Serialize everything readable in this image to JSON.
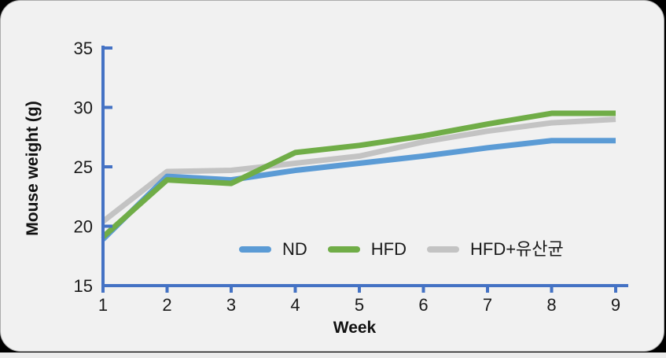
{
  "chart_data": {
    "type": "line",
    "title": "",
    "ylabel": "Mouse weight (g)",
    "xlabel": "Week",
    "x_tick_labels": [
      "1",
      "2",
      "3",
      "4",
      "5",
      "6",
      "7",
      "8",
      "9"
    ],
    "y_tick_labels": [
      "15",
      "20",
      "25",
      "30",
      "35"
    ],
    "y_tick_values": [
      15,
      20,
      25,
      30,
      35
    ],
    "x_values": [
      1,
      2,
      3,
      4,
      5,
      6,
      7,
      8,
      9
    ],
    "ylim": [
      15,
      35
    ],
    "xlim": [
      1,
      9
    ],
    "grid": false,
    "legend_position": "bottom-inside",
    "axis_color": "#4472C4",
    "text_color": "#1A1A1A",
    "background_color": "#F1F1F1",
    "series": [
      {
        "name": "ND",
        "color": "#5B9BD5",
        "values": [
          18.9,
          24.2,
          23.9,
          24.7,
          25.3,
          25.9,
          26.6,
          27.2,
          27.2
        ]
      },
      {
        "name": "HFD",
        "color": "#70AD47",
        "values": [
          19.1,
          23.9,
          23.6,
          26.2,
          26.8,
          27.6,
          28.6,
          29.5,
          29.5
        ]
      },
      {
        "name": "HFD+유산균",
        "color": "#C3C3C3",
        "values": [
          20.4,
          24.6,
          24.7,
          25.3,
          25.9,
          27.1,
          28.0,
          28.7,
          29.0
        ]
      }
    ]
  }
}
